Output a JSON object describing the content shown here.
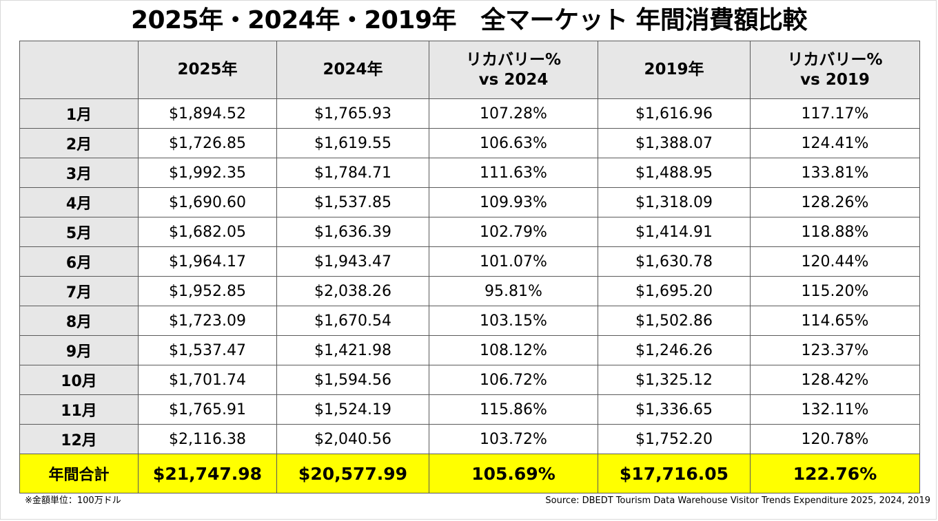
{
  "title": "2025年・2024年・2019年　全マーケット 年間消費額比較",
  "table": {
    "headers": [
      {
        "line1": "",
        "line2": ""
      },
      {
        "line1": "2025年",
        "line2": ""
      },
      {
        "line1": "2024年",
        "line2": ""
      },
      {
        "line1": "リカバリー%",
        "line2": "vs 2024"
      },
      {
        "line1": "2019年",
        "line2": ""
      },
      {
        "line1": "リカバリー%",
        "line2": "vs 2019"
      }
    ],
    "rows": [
      [
        "1月",
        "$1,894.52",
        "$1,765.93",
        "107.28%",
        "$1,616.96",
        "117.17%"
      ],
      [
        "2月",
        "$1,726.85",
        "$1,619.55",
        "106.63%",
        "$1,388.07",
        "124.41%"
      ],
      [
        "3月",
        "$1,992.35",
        "$1,784.71",
        "111.63%",
        "$1,488.95",
        "133.81%"
      ],
      [
        "4月",
        "$1,690.60",
        "$1,537.85",
        "109.93%",
        "$1,318.09",
        "128.26%"
      ],
      [
        "5月",
        "$1,682.05",
        "$1,636.39",
        "102.79%",
        "$1,414.91",
        "118.88%"
      ],
      [
        "6月",
        "$1,964.17",
        "$1,943.47",
        "101.07%",
        "$1,630.78",
        "120.44%"
      ],
      [
        "7月",
        "$1,952.85",
        "$2,038.26",
        "95.81%",
        "$1,695.20",
        "115.20%"
      ],
      [
        "8月",
        "$1,723.09",
        "$1,670.54",
        "103.15%",
        "$1,502.86",
        "114.65%"
      ],
      [
        "9月",
        "$1,537.47",
        "$1,421.98",
        "108.12%",
        "$1,246.26",
        "123.37%"
      ],
      [
        "10月",
        "$1,701.74",
        "$1,594.56",
        "106.72%",
        "$1,325.12",
        "128.42%"
      ],
      [
        "11月",
        "$1,765.91",
        "$1,524.19",
        "115.86%",
        "$1,336.65",
        "132.11%"
      ],
      [
        "12月",
        "$2,116.38",
        "$2,040.56",
        "103.72%",
        "$1,752.20",
        "120.78%"
      ]
    ],
    "total": [
      "年間合計",
      "$21,747.98",
      "$20,577.99",
      "105.69%",
      "$17,716.05",
      "122.76%"
    ]
  },
  "footnote_unit": "※金額単位：100万ドル",
  "footnote_source": "Source: DBEDT Tourism Data Warehouse Visitor Trends Expenditure 2025, 2024, 2019",
  "colors": {
    "header_bg": "#e7e7e7",
    "total_bg": "#ffff00",
    "border": "#5a5a5a"
  }
}
